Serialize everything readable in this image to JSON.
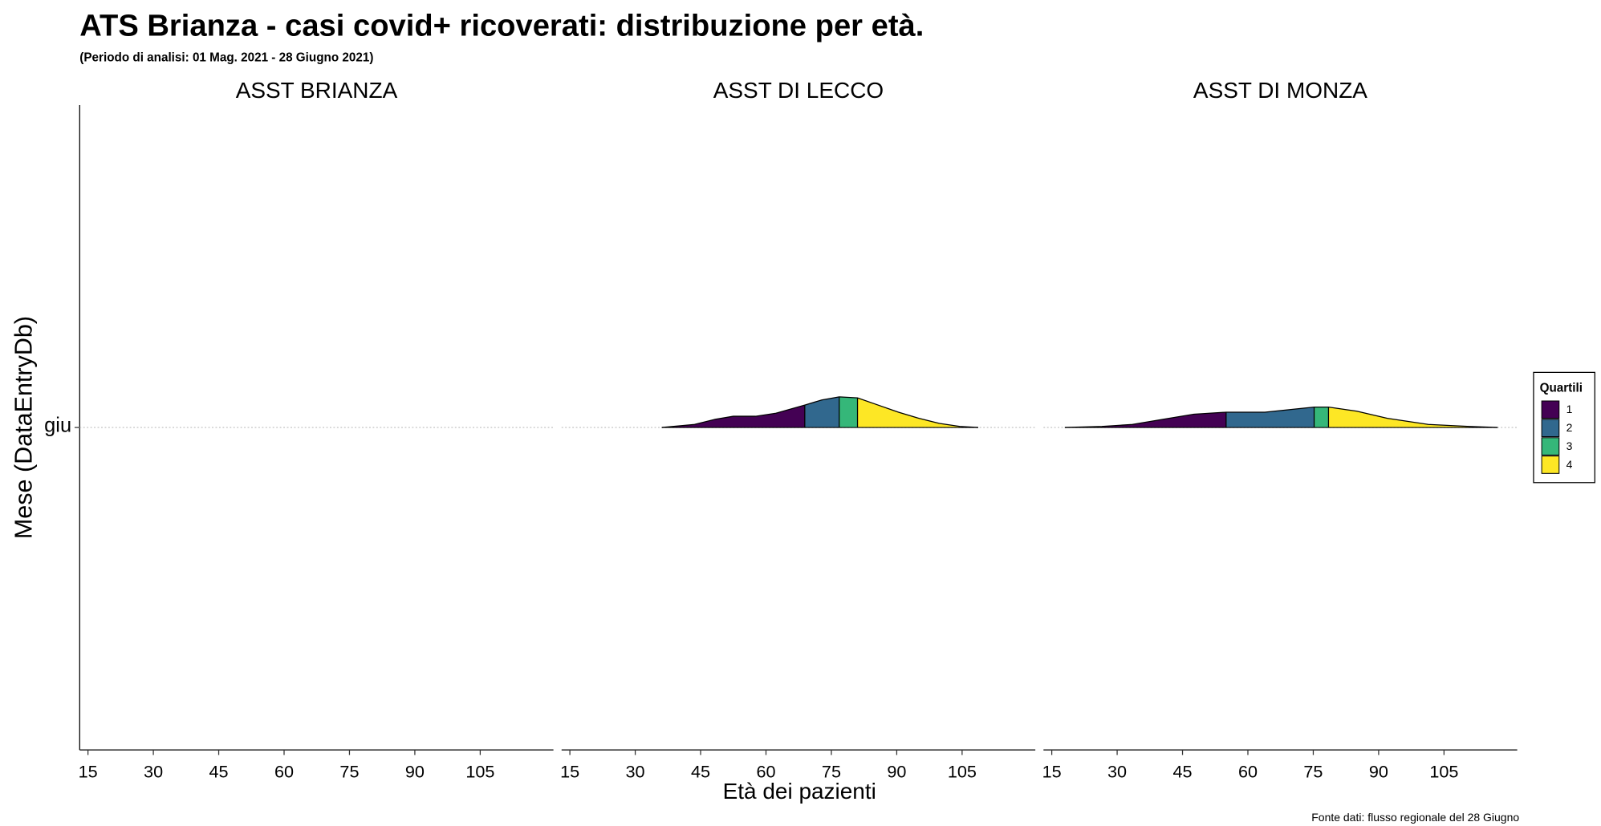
{
  "chart_data": {
    "type": "ridgeline",
    "title": "ATS Brianza - casi covid+ ricoverati: distribuzione per età.",
    "subtitle": "(Periodo di analisi: 01 Mag. 2021 - 28 Giugno 2021)",
    "x_label": "Età dei pazienti",
    "y_label": "Mese (DataEntryDb)",
    "caption": "Fonte dati: flusso regionale del 28 Giugno",
    "categories": [
      "giu"
    ],
    "xlim": [
      13.1,
      121.8
    ],
    "xticks": [
      15,
      30,
      45,
      60,
      75,
      90,
      105
    ],
    "grid": true,
    "legend": {
      "title": "Quartili",
      "position": "right"
    },
    "series": [
      {
        "name": "1",
        "color": "#440154"
      },
      {
        "name": "2",
        "color": "#31688E"
      },
      {
        "name": "3",
        "color": "#35B779"
      },
      {
        "name": "4",
        "color": "#FDE725"
      }
    ],
    "panels": [
      {
        "name": "ASST BRIANZA",
        "x": [],
        "values": [],
        "quartile_breaks": []
      },
      {
        "name": "ASST DI LECCO",
        "x": [
          36.1,
          43.6,
          48.3,
          52.5,
          57.6,
          62.3,
          68.9,
          72.8,
          76.8,
          81.0,
          85.7,
          90.4,
          95.1,
          99.8,
          104.5,
          108.7
        ],
        "values": [
          0,
          0.003,
          0.008,
          0.011,
          0.011,
          0.014,
          0.022,
          0.027,
          0.03,
          0.029,
          0.022,
          0.015,
          0.009,
          0.004,
          0.001,
          0
        ],
        "quartile_breaks": [
          68.9,
          76.8,
          81.0
        ]
      },
      {
        "name": "ASST DI MONZA",
        "x": [
          18.0,
          26.5,
          33.5,
          40.5,
          47.6,
          55.0,
          63.9,
          75.2,
          78.5,
          85.0,
          92.0,
          101.4,
          110.8,
          117.3
        ],
        "values": [
          0,
          0.001,
          0.003,
          0.008,
          0.013,
          0.015,
          0.015,
          0.02,
          0.02,
          0.016,
          0.009,
          0.003,
          0.001,
          0
        ],
        "quartile_breaks": [
          55.0,
          75.2,
          78.5
        ]
      }
    ]
  }
}
